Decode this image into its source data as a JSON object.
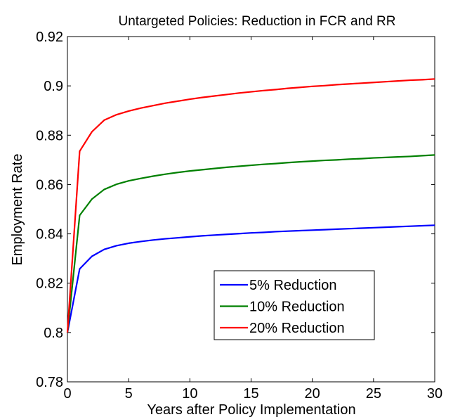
{
  "chart_data": {
    "type": "line",
    "title": "Untargeted Policies: Reduction in FCR and RR",
    "xlabel": "Years after Policy Implementation",
    "ylabel": "Employment Rate",
    "xlim": [
      0,
      30
    ],
    "ylim": [
      0.78,
      0.92
    ],
    "xticks": [
      "0",
      "5",
      "10",
      "15",
      "20",
      "25",
      "30"
    ],
    "yticks": [
      "0.78",
      "0.8",
      "0.82",
      "0.84",
      "0.86",
      "0.88",
      "0.9",
      "0.92"
    ],
    "grid": false,
    "legend_position": "lower-right",
    "x": [
      0,
      1,
      2,
      3,
      4,
      5,
      6,
      7,
      8,
      9,
      10,
      11,
      12,
      13,
      14,
      15,
      16,
      17,
      18,
      19,
      20,
      21,
      22,
      23,
      24,
      25,
      26,
      27,
      28,
      29,
      30
    ],
    "series": [
      {
        "name": "5% Reduction",
        "color": "#0000ff",
        "values": [
          0.8,
          0.8258,
          0.8309,
          0.8337,
          0.8352,
          0.8362,
          0.8369,
          0.8375,
          0.838,
          0.8384,
          0.8388,
          0.8392,
          0.8395,
          0.8398,
          0.8401,
          0.8404,
          0.8406,
          0.8409,
          0.8411,
          0.8413,
          0.8415,
          0.8417,
          0.8419,
          0.8421,
          0.8423,
          0.8425,
          0.8427,
          0.8429,
          0.8431,
          0.8433,
          0.8435
        ]
      },
      {
        "name": "10% Reduction",
        "color": "#008000",
        "values": [
          0.8,
          0.8475,
          0.8541,
          0.858,
          0.8601,
          0.8615,
          0.8625,
          0.8634,
          0.8642,
          0.8649,
          0.8655,
          0.866,
          0.8665,
          0.867,
          0.8674,
          0.8678,
          0.8682,
          0.8685,
          0.8689,
          0.8692,
          0.8695,
          0.8698,
          0.87,
          0.8703,
          0.8705,
          0.8708,
          0.871,
          0.8712,
          0.8714,
          0.8717,
          0.872
        ]
      },
      {
        "name": "20% Reduction",
        "color": "#ff0000",
        "values": [
          0.8,
          0.8735,
          0.8814,
          0.8861,
          0.8883,
          0.8898,
          0.891,
          0.892,
          0.893,
          0.8938,
          0.8946,
          0.8953,
          0.8959,
          0.8965,
          0.8971,
          0.8976,
          0.8981,
          0.8985,
          0.899,
          0.8994,
          0.8998,
          0.9001,
          0.9005,
          0.9008,
          0.9011,
          0.9014,
          0.9017,
          0.902,
          0.9023,
          0.9025,
          0.9028
        ]
      }
    ]
  }
}
